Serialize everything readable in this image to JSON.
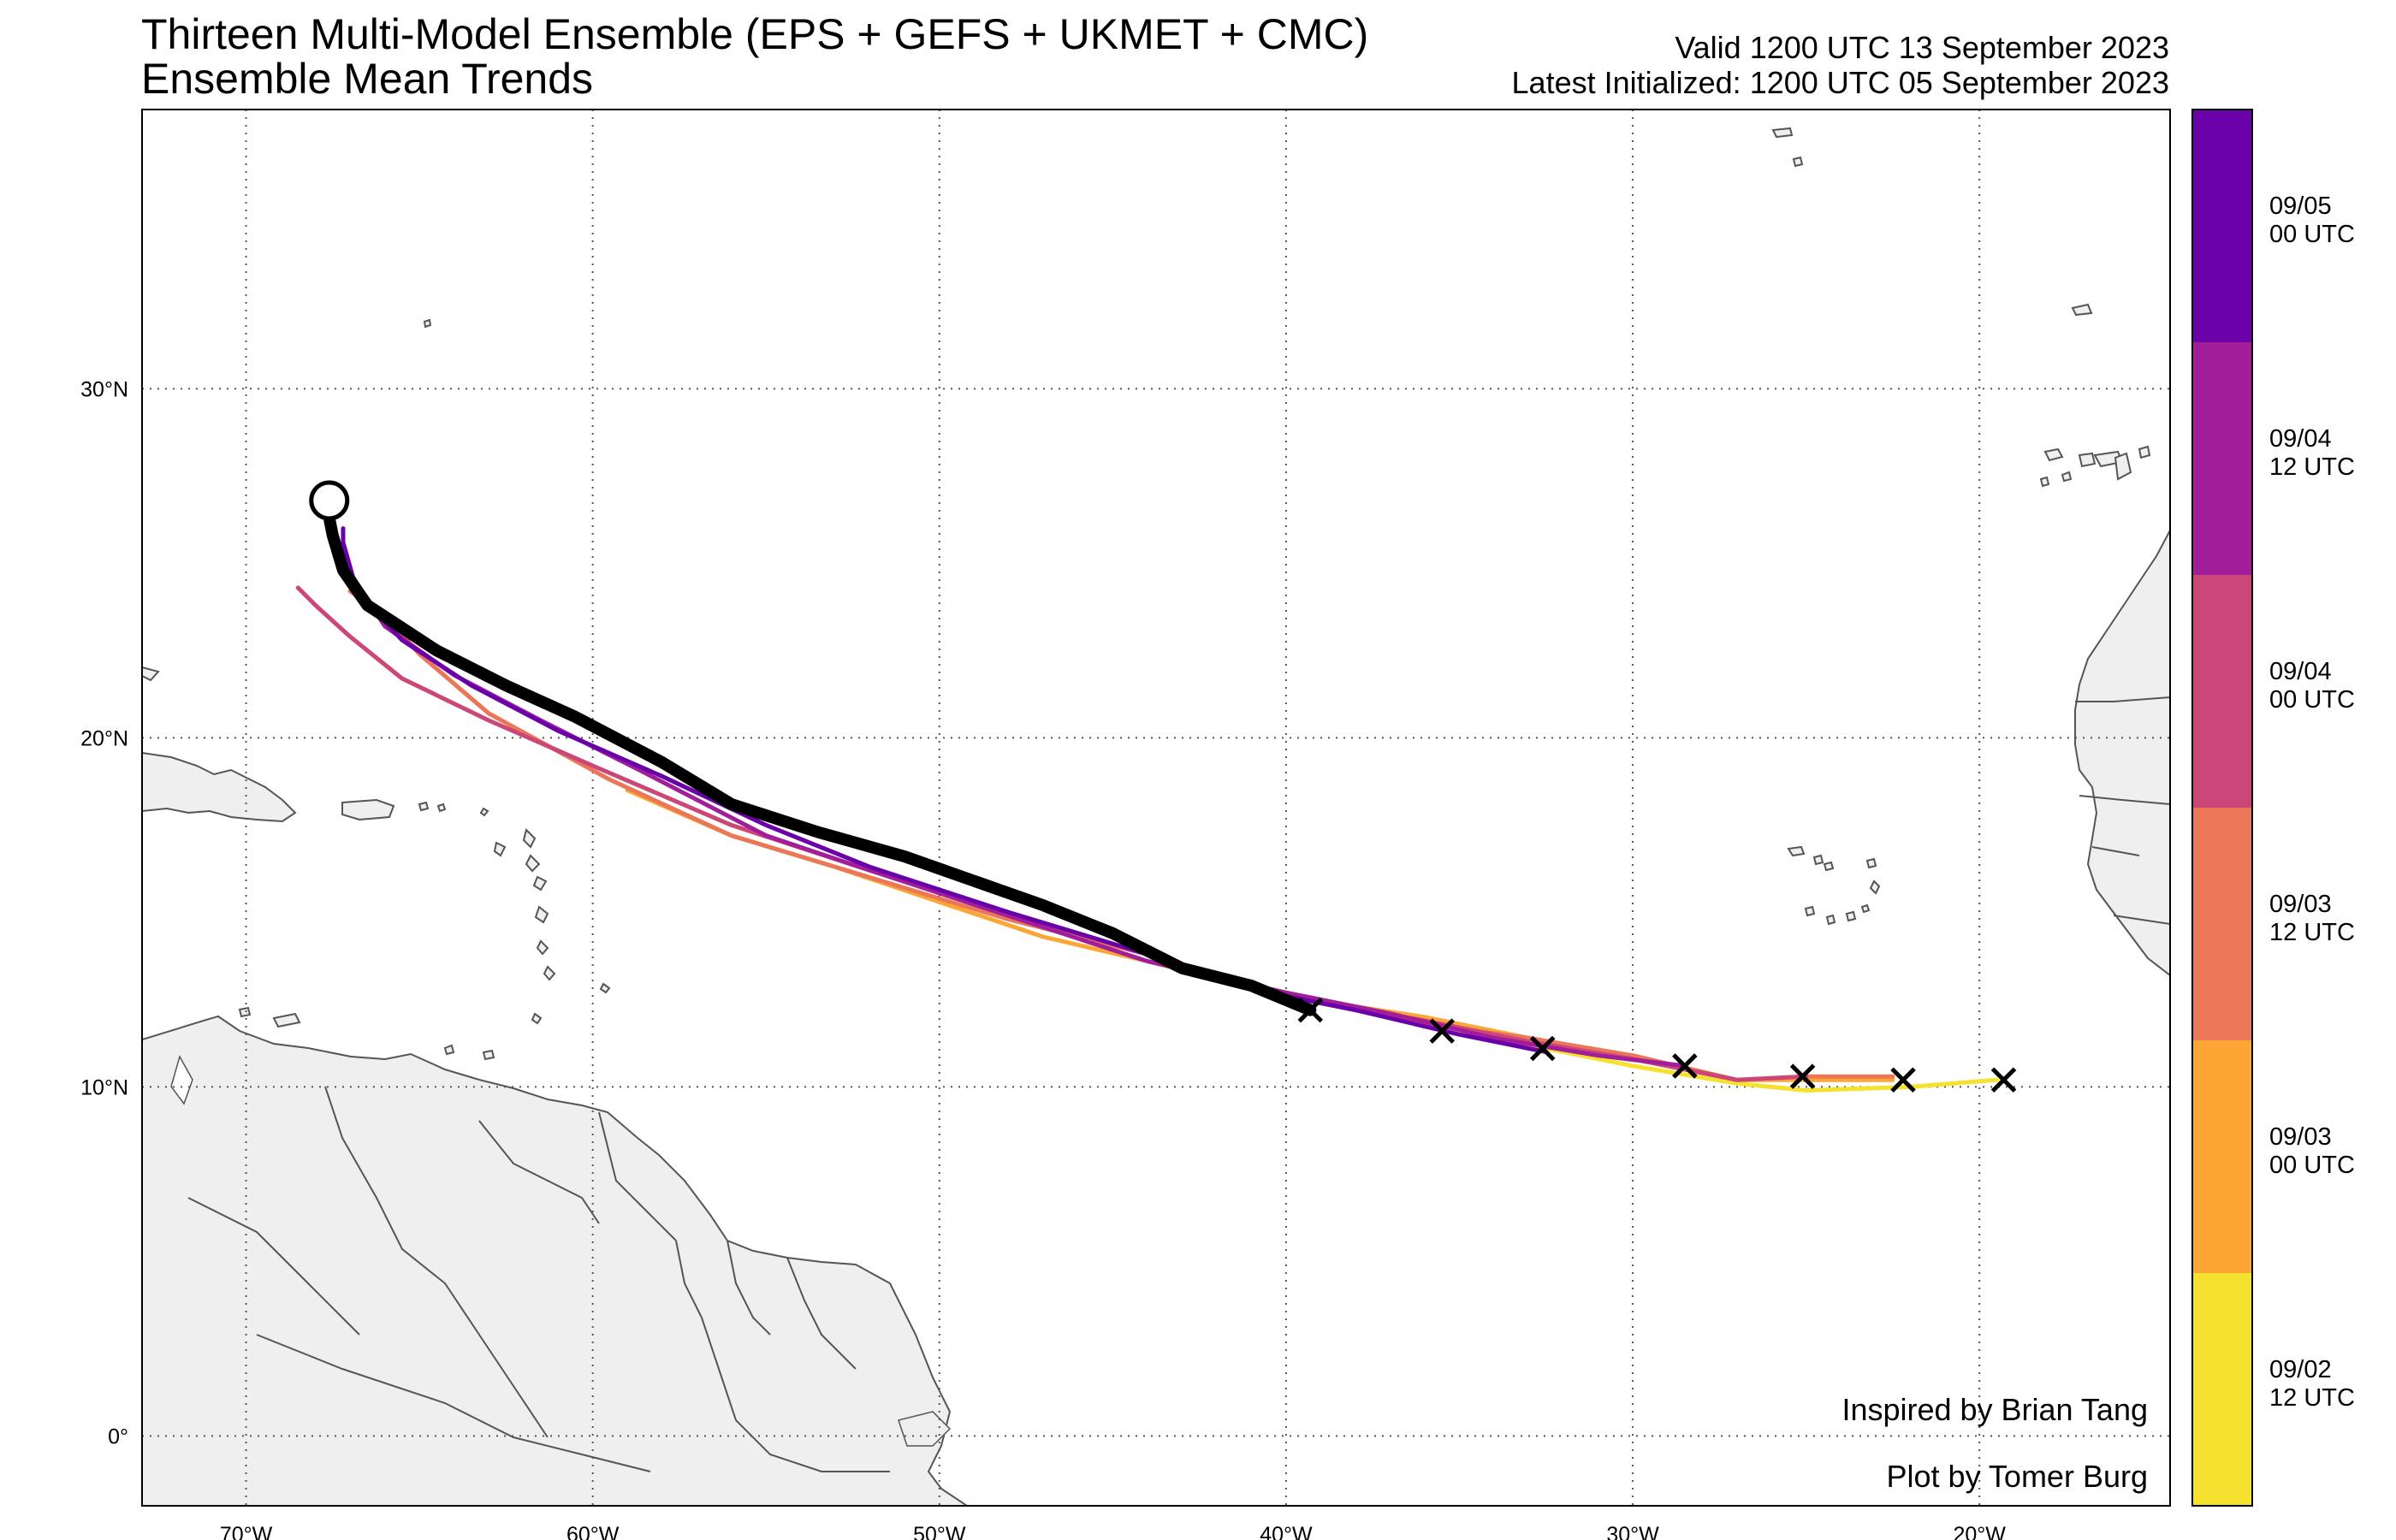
{
  "title": {
    "line1": "Thirteen Multi-Model Ensemble (EPS + GEFS + UKMET + CMC)",
    "line2": "Ensemble Mean Trends"
  },
  "valid": "Valid 1200 UTC 13 September 2023",
  "initialized": "Latest Initialized: 1200 UTC 05 September 2023",
  "credits": {
    "inspired": "Inspired by Brian Tang",
    "plot": "Plot by Tomer Burg"
  },
  "map": {
    "lon_range": [
      -73,
      -14.5
    ],
    "lat_range": [
      -2,
      38
    ],
    "land_color": "#efefef",
    "coast_color": "#555555",
    "grid": "dotted",
    "lon_ticks": [
      {
        "value": -70,
        "label": "70°W"
      },
      {
        "value": -60,
        "label": "60°W"
      },
      {
        "value": -50,
        "label": "50°W"
      },
      {
        "value": -40,
        "label": "40°W"
      },
      {
        "value": -30,
        "label": "30°W"
      },
      {
        "value": -20,
        "label": "20°W"
      }
    ],
    "lat_ticks": [
      {
        "value": 0,
        "label": "0°"
      },
      {
        "value": 10,
        "label": "10°N"
      },
      {
        "value": 20,
        "label": "20°N"
      },
      {
        "value": 30,
        "label": "30°N"
      }
    ]
  },
  "colorbar": {
    "bins": [
      {
        "color": "#f5e22e",
        "label1": "09/02",
        "label2": "12 UTC"
      },
      {
        "color": "#fca636",
        "label1": "09/03",
        "label2": "00 UTC"
      },
      {
        "color": "#eb7658",
        "label1": "09/03",
        "label2": "12 UTC"
      },
      {
        "color": "#cc4778",
        "label1": "09/04",
        "label2": "00 UTC"
      },
      {
        "color": "#a21d9a",
        "label1": "09/04",
        "label2": "12 UTC"
      },
      {
        "color": "#6a00a8",
        "label1": "09/05",
        "label2": "00 UTC"
      }
    ]
  },
  "chart_data": {
    "type": "map-tracks",
    "tracks": [
      {
        "init": "09/02 12 UTC",
        "color": "#f5e22e",
        "points": [
          [
            -19.5,
            10.2
          ],
          [
            -22,
            10.0
          ],
          [
            -25,
            9.9
          ],
          [
            -27,
            10.1
          ],
          [
            -30,
            10.6
          ],
          [
            -33,
            11.2
          ],
          [
            -36,
            11.9
          ],
          [
            -39,
            12.4
          ]
        ]
      },
      {
        "init": "09/03 00 UTC",
        "color": "#fca636",
        "points": [
          [
            -22.5,
            10.2
          ],
          [
            -25,
            10.2
          ],
          [
            -27,
            10.2
          ],
          [
            -30,
            10.8
          ],
          [
            -33,
            11.4
          ],
          [
            -36,
            12.0
          ],
          [
            -40,
            12.6
          ],
          [
            -44,
            13.6
          ],
          [
            -47,
            14.3
          ],
          [
            -50,
            15.3
          ],
          [
            -53,
            16.3
          ],
          [
            -56,
            17.2
          ],
          [
            -59,
            18.5
          ]
        ]
      },
      {
        "init": "09/03 12 UTC",
        "color": "#eb7658",
        "points": [
          [
            -22.5,
            10.3
          ],
          [
            -25,
            10.3
          ],
          [
            -27,
            10.2
          ],
          [
            -30,
            10.9
          ],
          [
            -33,
            11.4
          ],
          [
            -36,
            11.8
          ],
          [
            -40,
            12.6
          ],
          [
            -44,
            13.8
          ],
          [
            -48,
            14.8
          ],
          [
            -52,
            16.0
          ],
          [
            -56,
            17.2
          ],
          [
            -59.5,
            18.8
          ],
          [
            -63,
            20.7
          ],
          [
            -65,
            22.4
          ],
          [
            -66,
            23.5
          ],
          [
            -67,
            24.2
          ]
        ]
      },
      {
        "init": "09/04 00 UTC",
        "color": "#cc4778",
        "points": [
          [
            -25,
            10.3
          ],
          [
            -27,
            10.2
          ],
          [
            -30,
            10.8
          ],
          [
            -33,
            11.3
          ],
          [
            -36,
            11.9
          ],
          [
            -40,
            12.6
          ],
          [
            -44,
            13.8
          ],
          [
            -48,
            15.0
          ],
          [
            -52,
            16.2
          ],
          [
            -56,
            17.5
          ],
          [
            -60,
            19.2
          ],
          [
            -63,
            20.5
          ],
          [
            -65.5,
            21.7
          ],
          [
            -67,
            22.9
          ],
          [
            -68,
            23.8
          ],
          [
            -68.5,
            24.3
          ]
        ]
      },
      {
        "init": "09/04 12 UTC",
        "color": "#a21d9a",
        "points": [
          [
            -28.5,
            10.6
          ],
          [
            -31,
            10.9
          ],
          [
            -34,
            11.4
          ],
          [
            -37,
            12.1
          ],
          [
            -40,
            12.7
          ],
          [
            -44,
            13.6
          ],
          [
            -48,
            14.9
          ],
          [
            -52,
            16.2
          ],
          [
            -55,
            17.2
          ],
          [
            -58.5,
            19.0
          ],
          [
            -61.5,
            20.5
          ],
          [
            -64,
            21.8
          ],
          [
            -66,
            23.2
          ],
          [
            -67.3,
            25.2
          ],
          [
            -67.5,
            25.6
          ]
        ]
      },
      {
        "init": "09/05 00 UTC",
        "color": "#6a00a8",
        "points": [
          [
            -32.5,
            11.0
          ],
          [
            -35,
            11.5
          ],
          [
            -38,
            12.2
          ],
          [
            -40,
            12.6
          ],
          [
            -44,
            13.8
          ],
          [
            -48,
            15.0
          ],
          [
            -52,
            16.3
          ],
          [
            -55,
            17.5
          ],
          [
            -58,
            18.9
          ],
          [
            -61,
            20.2
          ],
          [
            -63.5,
            21.5
          ],
          [
            -65.5,
            22.8
          ],
          [
            -66.8,
            24.2
          ],
          [
            -67.2,
            25.6
          ],
          [
            -67.2,
            26.0
          ]
        ]
      },
      {
        "init": "latest",
        "color": "#000000",
        "points": [
          [
            -39.3,
            12.2
          ],
          [
            -41,
            12.9
          ],
          [
            -43,
            13.4
          ],
          [
            -45,
            14.4
          ],
          [
            -47,
            15.2
          ],
          [
            -49,
            15.9
          ],
          [
            -51,
            16.6
          ],
          [
            -53.5,
            17.3
          ],
          [
            -56,
            18.1
          ],
          [
            -58,
            19.3
          ],
          [
            -60.5,
            20.6
          ],
          [
            -62.5,
            21.5
          ],
          [
            -64.5,
            22.5
          ],
          [
            -66.5,
            23.8
          ],
          [
            -67.2,
            24.8
          ],
          [
            -67.5,
            25.8
          ],
          [
            -67.7,
            26.8
          ]
        ]
      }
    ],
    "x_markers": [
      {
        "lon": -39.3,
        "lat": 12.2
      },
      {
        "lon": -35.5,
        "lat": 11.6
      },
      {
        "lon": -32.6,
        "lat": 11.1
      },
      {
        "lon": -28.5,
        "lat": 10.6
      },
      {
        "lon": -25.1,
        "lat": 10.3
      },
      {
        "lon": -22.2,
        "lat": 10.2
      },
      {
        "lon": -19.3,
        "lat": 10.2
      }
    ],
    "latest_position": {
      "lon": -67.6,
      "lat": 26.8
    }
  }
}
